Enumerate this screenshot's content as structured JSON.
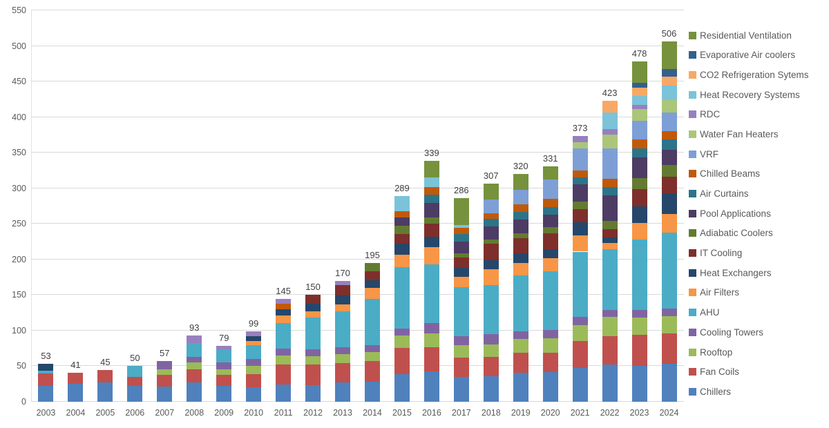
{
  "chart_data": {
    "type": "bar",
    "stacked": true,
    "title": "",
    "xlabel": "",
    "ylabel": "",
    "categories": [
      "2003",
      "2004",
      "2005",
      "2006",
      "2007",
      "2008",
      "2009",
      "2010",
      "2011",
      "2012",
      "2013",
      "2014",
      "2015",
      "2016",
      "2017",
      "2018",
      "2019",
      "2020",
      "2021",
      "2022",
      "2023",
      "2024"
    ],
    "totals": [
      53,
      41,
      45,
      50,
      57,
      93,
      79,
      99,
      145,
      150,
      170,
      195,
      289,
      339,
      286,
      307,
      320,
      331,
      373,
      423,
      478,
      506
    ],
    "series": [
      {
        "name": "Chillers",
        "color": "#4f81bd",
        "values": [
          22,
          25,
          27,
          22,
          21,
          27,
          22,
          20,
          24,
          23,
          27,
          28,
          39,
          43,
          35,
          36,
          41,
          42,
          48,
          52,
          50,
          53
        ]
      },
      {
        "name": "Fan Coils",
        "color": "#c0504d",
        "values": [
          18,
          16,
          18,
          13,
          17,
          19,
          16,
          19,
          28,
          29,
          27,
          29,
          37,
          34,
          27,
          27,
          28,
          27,
          37,
          40,
          44,
          43
        ]
      },
      {
        "name": "Rooftop",
        "color": "#9bbb59",
        "values": [
          0,
          0,
          0,
          0,
          8,
          9,
          8,
          11,
          13,
          12,
          13,
          13,
          17,
          19,
          18,
          18,
          19,
          20,
          23,
          27,
          24,
          24
        ]
      },
      {
        "name": "Cooling Towers",
        "color": "#8064a2",
        "values": [
          0,
          0,
          0,
          0,
          11,
          8,
          9,
          10,
          10,
          10,
          10,
          10,
          10,
          15,
          12,
          14,
          11,
          12,
          11,
          10,
          11,
          11
        ]
      },
      {
        "name": "AHU",
        "color": "#4bacc6",
        "values": [
          4,
          0,
          0,
          15,
          0,
          19,
          19,
          20,
          36,
          44,
          50,
          65,
          86,
          82,
          69,
          69,
          79,
          82,
          92,
          85,
          99,
          107
        ]
      },
      {
        "name": "Air Filters",
        "color": "#f79646",
        "values": [
          0,
          0,
          0,
          0,
          0,
          0,
          0,
          5,
          10,
          9,
          10,
          15,
          18,
          24,
          15,
          22,
          17,
          19,
          23,
          9,
          23,
          26
        ]
      },
      {
        "name": "Heat Exchangers",
        "color": "#25476b",
        "values": [
          9,
          0,
          0,
          0,
          0,
          0,
          0,
          7,
          9,
          11,
          12,
          11,
          15,
          15,
          12,
          13,
          14,
          12,
          18,
          8,
          24,
          29
        ]
      },
      {
        "name": "IT Cooling",
        "color": "#7e2f2b",
        "values": [
          0,
          0,
          0,
          0,
          0,
          0,
          0,
          0,
          0,
          12,
          15,
          12,
          14,
          18,
          15,
          23,
          21,
          23,
          19,
          12,
          24,
          23
        ]
      },
      {
        "name": "Adiabatic Coolers",
        "color": "#637b31",
        "values": [
          0,
          0,
          0,
          0,
          0,
          0,
          0,
          0,
          0,
          0,
          0,
          12,
          11,
          9,
          6,
          6,
          7,
          8,
          10,
          11,
          15,
          17
        ]
      },
      {
        "name": "Pool Applications",
        "color": "#4d3c64",
        "values": [
          0,
          0,
          0,
          0,
          0,
          0,
          0,
          0,
          0,
          0,
          0,
          0,
          12,
          20,
          16,
          18,
          19,
          18,
          25,
          36,
          29,
          21
        ]
      },
      {
        "name": "Air Curtains",
        "color": "#2d7488",
        "values": [
          0,
          0,
          0,
          0,
          0,
          0,
          0,
          0,
          0,
          0,
          0,
          0,
          0,
          12,
          11,
          11,
          11,
          11,
          9,
          12,
          13,
          15
        ]
      },
      {
        "name": "Chilled Beams",
        "color": "#c05a0a",
        "values": [
          0,
          0,
          0,
          0,
          0,
          0,
          0,
          0,
          8,
          0,
          0,
          0,
          9,
          11,
          8,
          8,
          10,
          11,
          10,
          11,
          13,
          11
        ]
      },
      {
        "name": "VRF",
        "color": "#7d9fd6",
        "values": [
          0,
          0,
          0,
          0,
          0,
          0,
          0,
          0,
          0,
          0,
          0,
          0,
          0,
          0,
          0,
          19,
          21,
          27,
          31,
          43,
          26,
          26
        ]
      },
      {
        "name": "Water Fan Heaters",
        "color": "#abc678",
        "values": [
          0,
          0,
          0,
          0,
          0,
          0,
          0,
          0,
          0,
          0,
          0,
          0,
          0,
          0,
          0,
          0,
          0,
          0,
          9,
          19,
          16,
          18
        ]
      },
      {
        "name": "RDC",
        "color": "#9880bf",
        "values": [
          0,
          0,
          0,
          0,
          0,
          11,
          5,
          7,
          7,
          0,
          6,
          0,
          0,
          0,
          0,
          0,
          0,
          0,
          8,
          8,
          6,
          0
        ]
      },
      {
        "name": "Heat Recovery Systems",
        "color": "#7bc3d9",
        "values": [
          0,
          0,
          0,
          0,
          0,
          0,
          0,
          0,
          0,
          0,
          0,
          0,
          21,
          13,
          4,
          0,
          0,
          0,
          0,
          23,
          13,
          20
        ]
      },
      {
        "name": "CO2 Refrigeration Sytems",
        "color": "#f8a865",
        "values": [
          0,
          0,
          0,
          0,
          0,
          0,
          0,
          0,
          0,
          0,
          0,
          0,
          0,
          0,
          0,
          0,
          0,
          0,
          0,
          17,
          11,
          13
        ]
      },
      {
        "name": "Evaporative Air coolers",
        "color": "#33608c",
        "values": [
          0,
          0,
          0,
          0,
          0,
          0,
          0,
          0,
          0,
          0,
          0,
          0,
          0,
          0,
          0,
          0,
          0,
          0,
          0,
          0,
          7,
          11
        ]
      },
      {
        "name": "Residential Ventilation",
        "color": "#76923c",
        "values": [
          0,
          0,
          0,
          0,
          0,
          0,
          0,
          0,
          0,
          0,
          0,
          0,
          0,
          24,
          38,
          23,
          22,
          19,
          0,
          0,
          30,
          38
        ]
      }
    ],
    "y_axis": {
      "min": 0,
      "max": 550,
      "step": 50,
      "ticks": [
        "0",
        "50",
        "100",
        "150",
        "200",
        "250",
        "300",
        "350",
        "400",
        "450",
        "500",
        "550"
      ]
    },
    "legend": {
      "position": "right",
      "order": "top-to-bottom reversed vs stack"
    },
    "grid": true,
    "colors": {
      "grid": "#d9d9d9",
      "axis_text": "#595959",
      "data_label_text": "#3f3f3f",
      "background": "#ffffff"
    }
  }
}
